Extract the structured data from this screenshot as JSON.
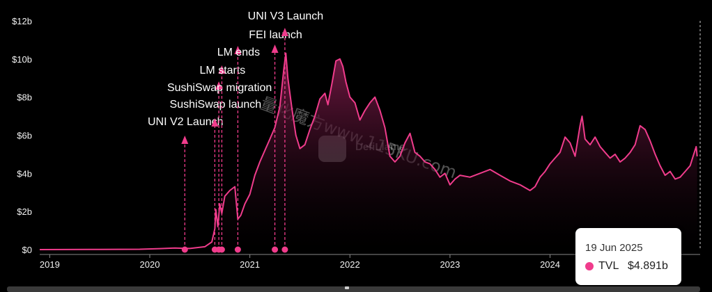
{
  "colors": {
    "line": "#f03c8c",
    "fill_top": "#7a1a48",
    "fill_bottom": "#000000",
    "background": "#000000"
  },
  "tooltip": {
    "date": "19 Jun 2025",
    "series_name": "TVL",
    "value": "$4.891b"
  },
  "watermark": {
    "logo_text": "DefiLlama",
    "overlay_text": "量化魔方www.115KU.com"
  },
  "chart_data": {
    "type": "area",
    "ylim": [
      0,
      12
    ],
    "x_range": [
      2018.9,
      2025.5
    ],
    "y_ticks": [
      {
        "value": 0,
        "label": "$0"
      },
      {
        "value": 2,
        "label": "$2b"
      },
      {
        "value": 4,
        "label": "$4b"
      },
      {
        "value": 6,
        "label": "$6b"
      },
      {
        "value": 8,
        "label": "$8b"
      },
      {
        "value": 10,
        "label": "$10b"
      },
      {
        "value": 12,
        "label": "$12b"
      }
    ],
    "x_ticks": [
      {
        "value": 2019,
        "label": "2019"
      },
      {
        "value": 2020,
        "label": "2020"
      },
      {
        "value": 2021,
        "label": "2021"
      },
      {
        "value": 2022,
        "label": "2022"
      },
      {
        "value": 2023,
        "label": "2023"
      },
      {
        "value": 2024,
        "label": "2024"
      }
    ],
    "series": [
      {
        "name": "TVL",
        "points": [
          [
            2018.9,
            0.0
          ],
          [
            2019.5,
            0.01
          ],
          [
            2019.9,
            0.02
          ],
          [
            2020.1,
            0.05
          ],
          [
            2020.25,
            0.08
          ],
          [
            2020.4,
            0.06
          ],
          [
            2020.55,
            0.15
          ],
          [
            2020.62,
            0.4
          ],
          [
            2020.65,
            1.1
          ],
          [
            2020.66,
            2.1
          ],
          [
            2020.68,
            1.2
          ],
          [
            2020.7,
            2.4
          ],
          [
            2020.72,
            1.9
          ],
          [
            2020.75,
            2.8
          ],
          [
            2020.8,
            3.1
          ],
          [
            2020.85,
            3.3
          ],
          [
            2020.88,
            1.6
          ],
          [
            2020.91,
            1.8
          ],
          [
            2020.95,
            2.4
          ],
          [
            2021.0,
            2.9
          ],
          [
            2021.05,
            3.9
          ],
          [
            2021.1,
            4.6
          ],
          [
            2021.15,
            5.2
          ],
          [
            2021.2,
            5.8
          ],
          [
            2021.25,
            6.4
          ],
          [
            2021.3,
            7.5
          ],
          [
            2021.34,
            9.5
          ],
          [
            2021.36,
            10.3
          ],
          [
            2021.38,
            9.0
          ],
          [
            2021.42,
            7.4
          ],
          [
            2021.46,
            6.0
          ],
          [
            2021.5,
            5.3
          ],
          [
            2021.55,
            5.5
          ],
          [
            2021.6,
            6.3
          ],
          [
            2021.65,
            7.0
          ],
          [
            2021.7,
            7.9
          ],
          [
            2021.75,
            8.2
          ],
          [
            2021.78,
            7.6
          ],
          [
            2021.82,
            8.7
          ],
          [
            2021.86,
            9.9
          ],
          [
            2021.9,
            10.0
          ],
          [
            2021.93,
            9.6
          ],
          [
            2021.96,
            8.8
          ],
          [
            2022.0,
            8.0
          ],
          [
            2022.05,
            7.7
          ],
          [
            2022.1,
            6.8
          ],
          [
            2022.15,
            7.3
          ],
          [
            2022.2,
            7.7
          ],
          [
            2022.25,
            8.0
          ],
          [
            2022.3,
            7.3
          ],
          [
            2022.35,
            6.4
          ],
          [
            2022.4,
            4.9
          ],
          [
            2022.45,
            4.6
          ],
          [
            2022.5,
            4.9
          ],
          [
            2022.55,
            5.6
          ],
          [
            2022.6,
            6.1
          ],
          [
            2022.65,
            5.1
          ],
          [
            2022.7,
            4.9
          ],
          [
            2022.75,
            4.6
          ],
          [
            2022.8,
            4.5
          ],
          [
            2022.85,
            4.2
          ],
          [
            2022.9,
            3.8
          ],
          [
            2022.95,
            4.0
          ],
          [
            2023.0,
            3.4
          ],
          [
            2023.05,
            3.7
          ],
          [
            2023.1,
            3.9
          ],
          [
            2023.2,
            3.8
          ],
          [
            2023.3,
            4.0
          ],
          [
            2023.4,
            4.2
          ],
          [
            2023.5,
            3.9
          ],
          [
            2023.6,
            3.6
          ],
          [
            2023.7,
            3.4
          ],
          [
            2023.8,
            3.1
          ],
          [
            2023.85,
            3.3
          ],
          [
            2023.9,
            3.8
          ],
          [
            2023.95,
            4.1
          ],
          [
            2024.0,
            4.5
          ],
          [
            2024.05,
            4.8
          ],
          [
            2024.1,
            5.1
          ],
          [
            2024.15,
            5.9
          ],
          [
            2024.2,
            5.6
          ],
          [
            2024.25,
            4.9
          ],
          [
            2024.3,
            6.5
          ],
          [
            2024.32,
            7.0
          ],
          [
            2024.35,
            5.8
          ],
          [
            2024.4,
            5.5
          ],
          [
            2024.45,
            5.9
          ],
          [
            2024.5,
            5.4
          ],
          [
            2024.55,
            5.1
          ],
          [
            2024.6,
            4.8
          ],
          [
            2024.65,
            5.0
          ],
          [
            2024.7,
            4.6
          ],
          [
            2024.75,
            4.8
          ],
          [
            2024.8,
            5.1
          ],
          [
            2024.85,
            5.5
          ],
          [
            2024.9,
            6.5
          ],
          [
            2024.95,
            6.3
          ],
          [
            2025.0,
            5.7
          ],
          [
            2025.05,
            5.0
          ],
          [
            2025.1,
            4.4
          ],
          [
            2025.15,
            3.9
          ],
          [
            2025.2,
            4.1
          ],
          [
            2025.25,
            3.7
          ],
          [
            2025.3,
            3.8
          ],
          [
            2025.35,
            4.1
          ],
          [
            2025.4,
            4.4
          ],
          [
            2025.43,
            4.9
          ],
          [
            2025.46,
            5.4
          ],
          [
            2025.47,
            4.891
          ]
        ]
      }
    ],
    "annotations": [
      {
        "label": "UNI V2 Launch",
        "x": 2020.35
      },
      {
        "label": "SushiSwap launch",
        "x": 2020.65
      },
      {
        "label": "SushiSwap migration",
        "x": 2020.69
      },
      {
        "label": "LM starts",
        "x": 2020.72
      },
      {
        "label": "LM ends",
        "x": 2020.88
      },
      {
        "label": "FEI launch",
        "x": 2021.25
      },
      {
        "label": "UNI V3 Launch",
        "x": 2021.35
      }
    ]
  }
}
